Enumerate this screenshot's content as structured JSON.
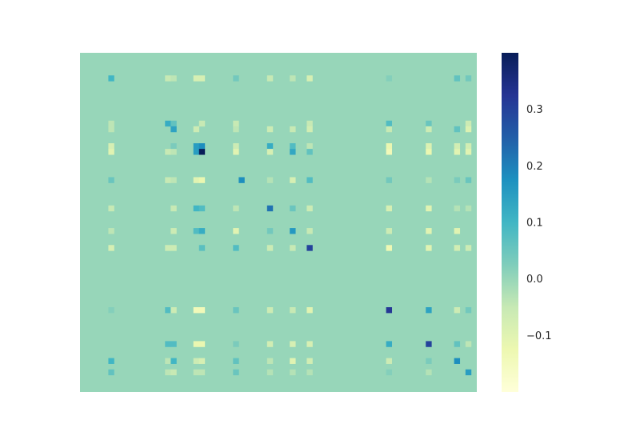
{
  "chart_data": {
    "type": "heatmap",
    "title": "",
    "xlabel": "",
    "ylabel": "",
    "grid": false,
    "axes_visible": false,
    "n_rows": 60,
    "n_cols": 70,
    "default_value": 0.0,
    "colormap": "YlGnBu",
    "colorbar": {
      "position": "right",
      "vmin": -0.2,
      "vmax": 0.4,
      "ticks": [
        0.3,
        0.2,
        0.1,
        0.0,
        -0.1
      ],
      "tick_labels": [
        "0.3",
        "0.2",
        "0.1",
        "0.0",
        "−0.1"
      ],
      "stops": [
        {
          "v": -0.2,
          "color": "#ffffd9"
        },
        {
          "v": -0.125,
          "color": "#edf8b1"
        },
        {
          "v": -0.05,
          "color": "#c7e9b4"
        },
        {
          "v": 0.025,
          "color": "#7fcdbb"
        },
        {
          "v": 0.1,
          "color": "#41b6c4"
        },
        {
          "v": 0.175,
          "color": "#1d91c0"
        },
        {
          "v": 0.25,
          "color": "#225ea8"
        },
        {
          "v": 0.325,
          "color": "#253494"
        },
        {
          "v": 0.4,
          "color": "#081d58"
        }
      ]
    },
    "cells": [
      {
        "r": 4,
        "c": 5,
        "v": 0.1
      },
      {
        "r": 4,
        "c": 15,
        "v": -0.05
      },
      {
        "r": 4,
        "c": 16,
        "v": -0.04
      },
      {
        "r": 4,
        "c": 20,
        "v": -0.08
      },
      {
        "r": 4,
        "c": 21,
        "v": -0.08
      },
      {
        "r": 4,
        "c": 27,
        "v": 0.04
      },
      {
        "r": 4,
        "c": 33,
        "v": -0.05
      },
      {
        "r": 4,
        "c": 37,
        "v": -0.04
      },
      {
        "r": 4,
        "c": 40,
        "v": -0.08
      },
      {
        "r": 4,
        "c": 54,
        "v": 0.02
      },
      {
        "r": 4,
        "c": 66,
        "v": 0.06
      },
      {
        "r": 4,
        "c": 68,
        "v": 0.04
      },
      {
        "r": 12,
        "c": 5,
        "v": -0.04
      },
      {
        "r": 12,
        "c": 15,
        "v": 0.12
      },
      {
        "r": 12,
        "c": 16,
        "v": 0.06
      },
      {
        "r": 12,
        "c": 21,
        "v": -0.05
      },
      {
        "r": 12,
        "c": 27,
        "v": -0.05
      },
      {
        "r": 12,
        "c": 40,
        "v": -0.05
      },
      {
        "r": 12,
        "c": 54,
        "v": 0.08
      },
      {
        "r": 12,
        "c": 61,
        "v": 0.05
      },
      {
        "r": 12,
        "c": 68,
        "v": -0.06
      },
      {
        "r": 13,
        "c": 5,
        "v": -0.04
      },
      {
        "r": 13,
        "c": 16,
        "v": 0.14
      },
      {
        "r": 13,
        "c": 20,
        "v": -0.06
      },
      {
        "r": 13,
        "c": 27,
        "v": -0.04
      },
      {
        "r": 13,
        "c": 33,
        "v": -0.06
      },
      {
        "r": 13,
        "c": 37,
        "v": -0.05
      },
      {
        "r": 13,
        "c": 40,
        "v": -0.07
      },
      {
        "r": 13,
        "c": 54,
        "v": -0.05
      },
      {
        "r": 13,
        "c": 61,
        "v": -0.06
      },
      {
        "r": 13,
        "c": 66,
        "v": 0.06
      },
      {
        "r": 13,
        "c": 68,
        "v": -0.09
      },
      {
        "r": 16,
        "c": 5,
        "v": -0.08
      },
      {
        "r": 16,
        "c": 16,
        "v": 0.03
      },
      {
        "r": 16,
        "c": 20,
        "v": 0.15
      },
      {
        "r": 16,
        "c": 21,
        "v": 0.18
      },
      {
        "r": 16,
        "c": 27,
        "v": -0.06
      },
      {
        "r": 16,
        "c": 33,
        "v": 0.12
      },
      {
        "r": 16,
        "c": 37,
        "v": 0.08
      },
      {
        "r": 16,
        "c": 40,
        "v": -0.04
      },
      {
        "r": 16,
        "c": 54,
        "v": -0.12
      },
      {
        "r": 16,
        "c": 61,
        "v": -0.09
      },
      {
        "r": 16,
        "c": 66,
        "v": -0.07
      },
      {
        "r": 16,
        "c": 68,
        "v": -0.07
      },
      {
        "r": 17,
        "c": 5,
        "v": -0.1
      },
      {
        "r": 17,
        "c": 15,
        "v": -0.05
      },
      {
        "r": 17,
        "c": 16,
        "v": -0.04
      },
      {
        "r": 17,
        "c": 20,
        "v": 0.15
      },
      {
        "r": 17,
        "c": 21,
        "v": 0.4
      },
      {
        "r": 17,
        "c": 27,
        "v": -0.1
      },
      {
        "r": 17,
        "c": 33,
        "v": -0.08
      },
      {
        "r": 17,
        "c": 37,
        "v": 0.13
      },
      {
        "r": 17,
        "c": 40,
        "v": 0.06
      },
      {
        "r": 17,
        "c": 54,
        "v": -0.14
      },
      {
        "r": 17,
        "c": 61,
        "v": -0.12
      },
      {
        "r": 17,
        "c": 66,
        "v": -0.1
      },
      {
        "r": 17,
        "c": 68,
        "v": -0.1
      },
      {
        "r": 22,
        "c": 5,
        "v": 0.05
      },
      {
        "r": 22,
        "c": 15,
        "v": -0.05
      },
      {
        "r": 22,
        "c": 16,
        "v": -0.04
      },
      {
        "r": 22,
        "c": 20,
        "v": -0.1
      },
      {
        "r": 22,
        "c": 21,
        "v": -0.12
      },
      {
        "r": 22,
        "c": 28,
        "v": 0.18
      },
      {
        "r": 22,
        "c": 33,
        "v": -0.03
      },
      {
        "r": 22,
        "c": 37,
        "v": -0.08
      },
      {
        "r": 22,
        "c": 40,
        "v": 0.08
      },
      {
        "r": 22,
        "c": 54,
        "v": 0.04
      },
      {
        "r": 22,
        "c": 61,
        "v": -0.03
      },
      {
        "r": 22,
        "c": 66,
        "v": 0.03
      },
      {
        "r": 22,
        "c": 68,
        "v": 0.05
      },
      {
        "r": 27,
        "c": 5,
        "v": -0.05
      },
      {
        "r": 27,
        "c": 16,
        "v": -0.05
      },
      {
        "r": 27,
        "c": 20,
        "v": 0.1
      },
      {
        "r": 27,
        "c": 21,
        "v": 0.08
      },
      {
        "r": 27,
        "c": 27,
        "v": -0.04
      },
      {
        "r": 27,
        "c": 33,
        "v": 0.22
      },
      {
        "r": 27,
        "c": 37,
        "v": 0.05
      },
      {
        "r": 27,
        "c": 40,
        "v": -0.06
      },
      {
        "r": 27,
        "c": 54,
        "v": -0.08
      },
      {
        "r": 27,
        "c": 61,
        "v": -0.1
      },
      {
        "r": 27,
        "c": 66,
        "v": -0.03
      },
      {
        "r": 27,
        "c": 68,
        "v": -0.03
      },
      {
        "r": 31,
        "c": 5,
        "v": -0.04
      },
      {
        "r": 31,
        "c": 16,
        "v": -0.06
      },
      {
        "r": 31,
        "c": 20,
        "v": 0.08
      },
      {
        "r": 31,
        "c": 21,
        "v": 0.12
      },
      {
        "r": 31,
        "c": 27,
        "v": -0.1
      },
      {
        "r": 31,
        "c": 33,
        "v": 0.04
      },
      {
        "r": 31,
        "c": 37,
        "v": 0.16
      },
      {
        "r": 31,
        "c": 40,
        "v": -0.05
      },
      {
        "r": 31,
        "c": 54,
        "v": -0.06
      },
      {
        "r": 31,
        "c": 61,
        "v": -0.1
      },
      {
        "r": 31,
        "c": 66,
        "v": -0.1
      },
      {
        "r": 34,
        "c": 5,
        "v": -0.08
      },
      {
        "r": 34,
        "c": 15,
        "v": -0.06
      },
      {
        "r": 34,
        "c": 16,
        "v": -0.06
      },
      {
        "r": 34,
        "c": 21,
        "v": 0.07
      },
      {
        "r": 34,
        "c": 27,
        "v": 0.08
      },
      {
        "r": 34,
        "c": 33,
        "v": -0.06
      },
      {
        "r": 34,
        "c": 37,
        "v": -0.05
      },
      {
        "r": 34,
        "c": 40,
        "v": 0.3
      },
      {
        "r": 34,
        "c": 54,
        "v": -0.13
      },
      {
        "r": 34,
        "c": 61,
        "v": -0.1
      },
      {
        "r": 34,
        "c": 66,
        "v": -0.07
      },
      {
        "r": 34,
        "c": 68,
        "v": -0.06
      },
      {
        "r": 45,
        "c": 5,
        "v": 0.02
      },
      {
        "r": 45,
        "c": 15,
        "v": 0.08
      },
      {
        "r": 45,
        "c": 16,
        "v": -0.06
      },
      {
        "r": 45,
        "c": 20,
        "v": -0.14
      },
      {
        "r": 45,
        "c": 21,
        "v": -0.14
      },
      {
        "r": 45,
        "c": 27,
        "v": 0.05
      },
      {
        "r": 45,
        "c": 33,
        "v": -0.06
      },
      {
        "r": 45,
        "c": 37,
        "v": -0.05
      },
      {
        "r": 45,
        "c": 40,
        "v": -0.1
      },
      {
        "r": 45,
        "c": 54,
        "v": 0.32
      },
      {
        "r": 45,
        "c": 61,
        "v": 0.14
      },
      {
        "r": 45,
        "c": 66,
        "v": -0.06
      },
      {
        "r": 45,
        "c": 68,
        "v": 0.04
      },
      {
        "r": 51,
        "c": 15,
        "v": 0.08
      },
      {
        "r": 51,
        "c": 16,
        "v": 0.08
      },
      {
        "r": 51,
        "c": 20,
        "v": -0.12
      },
      {
        "r": 51,
        "c": 21,
        "v": -0.12
      },
      {
        "r": 51,
        "c": 27,
        "v": 0.03
      },
      {
        "r": 51,
        "c": 33,
        "v": -0.07
      },
      {
        "r": 51,
        "c": 37,
        "v": -0.08
      },
      {
        "r": 51,
        "c": 40,
        "v": -0.08
      },
      {
        "r": 51,
        "c": 54,
        "v": 0.12
      },
      {
        "r": 51,
        "c": 61,
        "v": 0.3
      },
      {
        "r": 51,
        "c": 66,
        "v": 0.06
      },
      {
        "r": 51,
        "c": 68,
        "v": -0.04
      },
      {
        "r": 54,
        "c": 5,
        "v": 0.1
      },
      {
        "r": 54,
        "c": 15,
        "v": -0.04
      },
      {
        "r": 54,
        "c": 16,
        "v": 0.1
      },
      {
        "r": 54,
        "c": 20,
        "v": -0.06
      },
      {
        "r": 54,
        "c": 21,
        "v": -0.08
      },
      {
        "r": 54,
        "c": 27,
        "v": 0.06
      },
      {
        "r": 54,
        "c": 33,
        "v": -0.04
      },
      {
        "r": 54,
        "c": 37,
        "v": -0.1
      },
      {
        "r": 54,
        "c": 40,
        "v": -0.07
      },
      {
        "r": 54,
        "c": 54,
        "v": -0.06
      },
      {
        "r": 54,
        "c": 61,
        "v": 0.03
      },
      {
        "r": 54,
        "c": 66,
        "v": 0.18
      },
      {
        "r": 56,
        "c": 5,
        "v": 0.06
      },
      {
        "r": 56,
        "c": 15,
        "v": -0.04
      },
      {
        "r": 56,
        "c": 16,
        "v": -0.05
      },
      {
        "r": 56,
        "c": 20,
        "v": -0.04
      },
      {
        "r": 56,
        "c": 21,
        "v": -0.04
      },
      {
        "r": 56,
        "c": 27,
        "v": 0.05
      },
      {
        "r": 56,
        "c": 33,
        "v": -0.03
      },
      {
        "r": 56,
        "c": 37,
        "v": -0.03
      },
      {
        "r": 56,
        "c": 40,
        "v": -0.03
      },
      {
        "r": 56,
        "c": 54,
        "v": 0.02
      },
      {
        "r": 56,
        "c": 61,
        "v": -0.03
      },
      {
        "r": 56,
        "c": 68,
        "v": 0.15
      }
    ]
  }
}
